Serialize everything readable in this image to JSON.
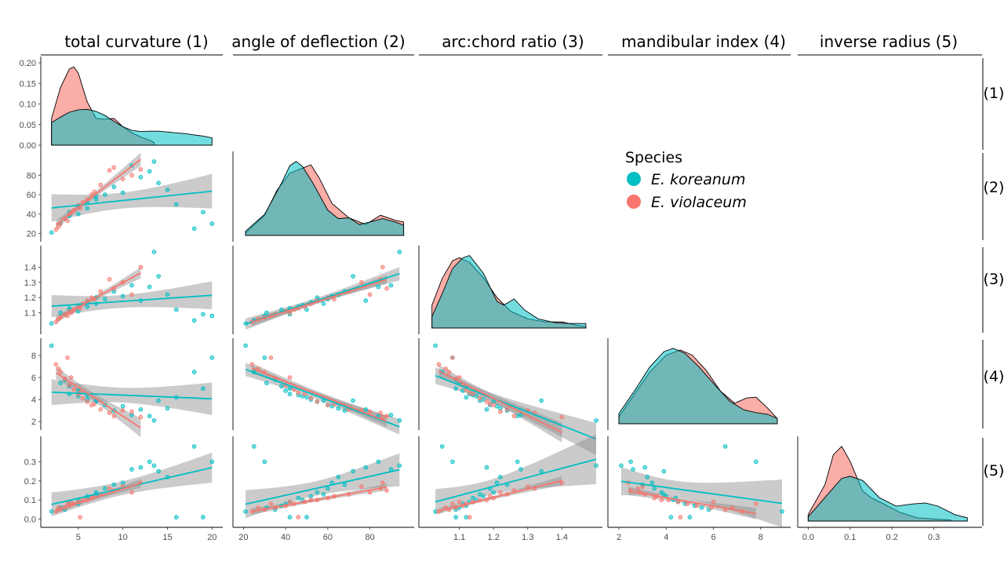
{
  "chart_data": {
    "type": "scatter",
    "column_labels": [
      "total curvature (1)",
      "angle of deflection (2)",
      "arc:chord ratio (3)",
      "mandibular index (4)",
      "inverse radius (5)"
    ],
    "row_labels": [
      "(1)",
      "(2)",
      "(3)",
      "(4)",
      "(5)"
    ],
    "legend": {
      "title": "Species",
      "items": [
        {
          "name": "E. koreanum",
          "color": "#00BFC4"
        },
        {
          "name": "E. violaceum",
          "color": "#F8766D"
        }
      ]
    },
    "variables": [
      {
        "range": [
          1.5,
          20.5
        ],
        "ticks": [
          5,
          10,
          15,
          20
        ],
        "density_range": [
          0,
          0.2
        ],
        "density_ticks": [
          "0.00",
          "0.05",
          "0.10",
          "0.15",
          "0.20"
        ]
      },
      {
        "range": [
          18,
          98
        ],
        "ticks": [
          20,
          40,
          60,
          80
        ]
      },
      {
        "range": [
          1.0,
          1.5
        ],
        "ticks": [
          1.1,
          1.2,
          1.3,
          1.4
        ]
      },
      {
        "range": [
          1.8,
          9.0
        ],
        "ticks": [
          2,
          4,
          6,
          8
        ]
      },
      {
        "range": [
          -0.01,
          0.4
        ],
        "ticks": [
          0.0,
          0.1,
          0.2,
          0.3
        ]
      }
    ],
    "y_ticks": [
      [],
      [
        20,
        40,
        60,
        80
      ],
      [
        1.1,
        1.2,
        1.3,
        1.4
      ],
      [
        2,
        4,
        6,
        8
      ],
      [
        0.0,
        0.1,
        0.2,
        0.3
      ]
    ],
    "densities": [
      {
        "E. koreanum": [
          [
            2,
            0.055
          ],
          [
            3,
            0.068
          ],
          [
            4,
            0.08
          ],
          [
            5,
            0.086
          ],
          [
            6,
            0.087
          ],
          [
            7,
            0.082
          ],
          [
            8,
            0.072
          ],
          [
            9,
            0.058
          ],
          [
            10,
            0.045
          ],
          [
            11,
            0.036
          ],
          [
            12,
            0.033
          ],
          [
            13,
            0.034
          ],
          [
            14,
            0.034
          ],
          [
            15,
            0.032
          ],
          [
            16,
            0.03
          ],
          [
            17,
            0.028
          ],
          [
            18,
            0.025
          ],
          [
            19,
            0.022
          ],
          [
            20,
            0.018
          ]
        ],
        "E. violaceum": [
          [
            2,
            0.065
          ],
          [
            3,
            0.14
          ],
          [
            4,
            0.185
          ],
          [
            4.5,
            0.19
          ],
          [
            5,
            0.175
          ],
          [
            6,
            0.105
          ],
          [
            7,
            0.065
          ],
          [
            8,
            0.063
          ],
          [
            9,
            0.065
          ],
          [
            10,
            0.045
          ],
          [
            11,
            0.03
          ],
          [
            12,
            0.02
          ],
          [
            13,
            0.012
          ],
          [
            13.5,
            0.006
          ]
        ]
      },
      {
        "E. koreanum": [
          [
            21,
            0.05
          ],
          [
            30,
            0.25
          ],
          [
            38,
            0.62
          ],
          [
            42,
            0.83
          ],
          [
            45,
            0.88
          ],
          [
            48,
            0.82
          ],
          [
            53,
            0.62
          ],
          [
            60,
            0.3
          ],
          [
            65,
            0.2
          ],
          [
            70,
            0.21
          ],
          [
            75,
            0.13
          ],
          [
            80,
            0.16
          ],
          [
            86,
            0.2
          ],
          [
            92,
            0.16
          ],
          [
            96,
            0.12
          ]
        ],
        "E. violaceum": [
          [
            21,
            0.03
          ],
          [
            30,
            0.24
          ],
          [
            36,
            0.54
          ],
          [
            42,
            0.74
          ],
          [
            48,
            0.8
          ],
          [
            52,
            0.84
          ],
          [
            56,
            0.68
          ],
          [
            62,
            0.38
          ],
          [
            70,
            0.21
          ],
          [
            78,
            0.13
          ],
          [
            85,
            0.24
          ],
          [
            92,
            0.18
          ],
          [
            96,
            0.16
          ]
        ]
      },
      {
        "E. koreanum": [
          [
            1.02,
            0.15
          ],
          [
            1.05,
            0.45
          ],
          [
            1.08,
            0.78
          ],
          [
            1.11,
            0.92
          ],
          [
            1.13,
            0.95
          ],
          [
            1.17,
            0.72
          ],
          [
            1.21,
            0.35
          ],
          [
            1.23,
            0.3
          ],
          [
            1.26,
            0.38
          ],
          [
            1.29,
            0.24
          ],
          [
            1.33,
            0.12
          ],
          [
            1.38,
            0.07
          ],
          [
            1.42,
            0.06
          ],
          [
            1.47,
            0.06
          ]
        ],
        "E. violaceum": [
          [
            1.02,
            0.3
          ],
          [
            1.05,
            0.65
          ],
          [
            1.08,
            0.88
          ],
          [
            1.1,
            0.92
          ],
          [
            1.13,
            0.86
          ],
          [
            1.17,
            0.66
          ],
          [
            1.21,
            0.4
          ],
          [
            1.25,
            0.22
          ],
          [
            1.3,
            0.12
          ],
          [
            1.35,
            0.08
          ],
          [
            1.4,
            0.08
          ],
          [
            1.45,
            0.03
          ],
          [
            1.47,
            0.02
          ]
        ]
      },
      {
        "E. koreanum": [
          [
            2.0,
            0.12
          ],
          [
            2.7,
            0.4
          ],
          [
            3.3,
            0.66
          ],
          [
            3.9,
            0.84
          ],
          [
            4.3,
            0.88
          ],
          [
            4.8,
            0.82
          ],
          [
            5.4,
            0.66
          ],
          [
            6.1,
            0.44
          ],
          [
            6.7,
            0.26
          ],
          [
            7.3,
            0.16
          ],
          [
            7.8,
            0.13
          ],
          [
            8.3,
            0.11
          ],
          [
            8.7,
            0.06
          ]
        ],
        "E. violaceum": [
          [
            2.0,
            0.08
          ],
          [
            2.7,
            0.36
          ],
          [
            3.3,
            0.6
          ],
          [
            4.0,
            0.8
          ],
          [
            4.6,
            0.86
          ],
          [
            5.1,
            0.8
          ],
          [
            5.7,
            0.62
          ],
          [
            6.3,
            0.38
          ],
          [
            6.9,
            0.24
          ],
          [
            7.4,
            0.3
          ],
          [
            7.8,
            0.31
          ],
          [
            8.3,
            0.18
          ],
          [
            8.7,
            0.06
          ]
        ]
      },
      {
        "E. koreanum": [
          [
            0.0,
            0.04
          ],
          [
            0.04,
            0.22
          ],
          [
            0.08,
            0.4
          ],
          [
            0.1,
            0.42
          ],
          [
            0.13,
            0.38
          ],
          [
            0.17,
            0.22
          ],
          [
            0.21,
            0.14
          ],
          [
            0.25,
            0.16
          ],
          [
            0.28,
            0.17
          ],
          [
            0.31,
            0.14
          ],
          [
            0.35,
            0.06
          ],
          [
            0.38,
            0.03
          ]
        ],
        "E. violaceum": [
          [
            0.0,
            0.06
          ],
          [
            0.04,
            0.34
          ],
          [
            0.06,
            0.62
          ],
          [
            0.08,
            0.7
          ],
          [
            0.1,
            0.56
          ],
          [
            0.13,
            0.28
          ],
          [
            0.15,
            0.22
          ],
          [
            0.18,
            0.16
          ],
          [
            0.22,
            0.08
          ],
          [
            0.26,
            0.03
          ],
          [
            0.3,
            0.02
          ],
          [
            0.34,
            0.01
          ]
        ]
      }
    ],
    "observations": {
      "E. koreanum": [
        [
          3,
          31,
          1.1,
          5.5,
          0.06
        ],
        [
          4,
          42,
          1.13,
          4.5,
          0.09
        ],
        [
          5,
          48,
          1.15,
          4.3,
          0.1
        ],
        [
          6,
          52,
          1.17,
          4.0,
          0.12
        ],
        [
          5,
          40,
          1.11,
          4.8,
          0.08
        ],
        [
          7,
          55,
          1.2,
          3.8,
          0.14
        ],
        [
          8,
          60,
          1.19,
          3.5,
          0.16
        ],
        [
          9,
          68,
          1.24,
          3.0,
          0.18
        ],
        [
          13.5,
          94,
          1.5,
          2.1,
          0.28
        ],
        [
          13,
          84,
          1.27,
          2.5,
          0.3
        ],
        [
          14,
          72,
          1.34,
          3.9,
          0.25
        ],
        [
          15,
          65,
          1.22,
          3.2,
          0.22
        ],
        [
          19,
          42,
          1.09,
          5.0,
          0.01
        ],
        [
          20,
          30,
          1.08,
          7.8,
          0.3
        ],
        [
          16,
          50,
          1.12,
          4.2,
          0.01
        ],
        [
          2,
          21,
          1.03,
          8.9,
          0.04
        ],
        [
          18,
          25,
          1.05,
          6.5,
          0.38
        ],
        [
          12,
          78,
          1.18,
          3.1,
          0.27
        ],
        [
          11,
          90,
          1.28,
          2.6,
          0.26
        ],
        [
          6,
          46,
          1.14,
          4.4,
          0.11
        ],
        [
          4,
          38,
          1.12,
          5.2,
          0.07
        ],
        [
          7,
          58,
          1.16,
          3.9,
          0.13
        ],
        [
          10,
          62,
          1.21,
          3.4,
          0.19
        ],
        [
          3.5,
          35,
          1.09,
          5.8,
          0.05
        ]
      ],
      "E. violaceum": [
        [
          2.5,
          24,
          1.04,
          7.2,
          0.04
        ],
        [
          3,
          30,
          1.07,
          6.5,
          0.05
        ],
        [
          3.5,
          35,
          1.09,
          5.9,
          0.06
        ],
        [
          4,
          40,
          1.11,
          5.3,
          0.07
        ],
        [
          4.5,
          44,
          1.12,
          4.9,
          0.08
        ],
        [
          5,
          49,
          1.14,
          4.5,
          0.09
        ],
        [
          5.5,
          52,
          1.16,
          4.1,
          0.1
        ],
        [
          6,
          55,
          1.18,
          3.8,
          0.1
        ],
        [
          6.5,
          60,
          1.2,
          3.5,
          0.11
        ],
        [
          7.5,
          70,
          1.24,
          3.1,
          0.13
        ],
        [
          8.5,
          85,
          1.32,
          2.8,
          0.16
        ],
        [
          9,
          88,
          1.26,
          2.5,
          0.15
        ],
        [
          10,
          76,
          1.3,
          3.0,
          0.17
        ],
        [
          12,
          86,
          1.4,
          2.4,
          0.19
        ],
        [
          4.2,
          42,
          1.1,
          6.0,
          0.09
        ],
        [
          5.2,
          46,
          1.13,
          4.6,
          0.01
        ],
        [
          3.8,
          33,
          1.08,
          7.8,
          0.08
        ],
        [
          6.8,
          63,
          1.19,
          3.6,
          0.12
        ],
        [
          2.8,
          27,
          1.06,
          6.8,
          0.06
        ],
        [
          11,
          80,
          1.22,
          2.9,
          0.14
        ]
      ]
    },
    "regressions": {
      "E. koreanum": {
        "range": [
          1.5,
          20.5,
          18,
          98,
          1.0,
          1.5,
          1.8,
          9.0
        ]
      },
      "E. violaceum": {
        "range": []
      }
    }
  }
}
